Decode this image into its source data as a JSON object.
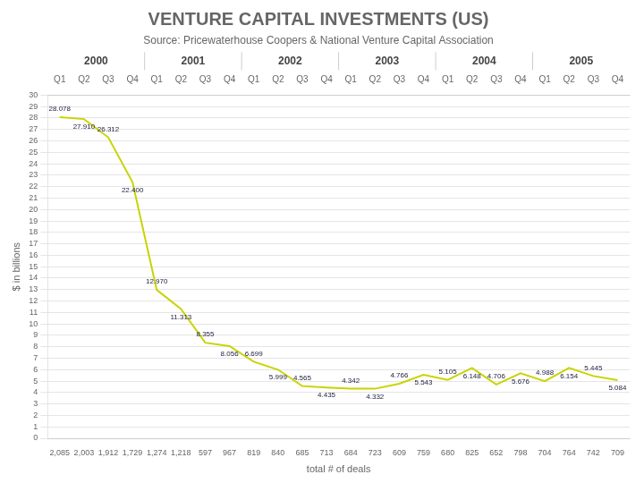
{
  "chart_data": {
    "type": "line",
    "title": "VENTURE CAPITAL INVESTMENTS (US)",
    "subtitle": "Source: Pricewaterhouse Coopers & National Venture Capital Association",
    "categories": [
      "Q1",
      "Q2",
      "Q3",
      "Q4",
      "Q1",
      "Q2",
      "Q3",
      "Q4",
      "Q1",
      "Q2",
      "Q3",
      "Q4",
      "Q1",
      "Q2",
      "Q3",
      "Q4",
      "Q1",
      "Q2",
      "Q3",
      "Q4",
      "Q1",
      "Q2",
      "Q3",
      "Q4"
    ],
    "years": [
      "2000",
      "2001",
      "2002",
      "2003",
      "2004",
      "2005"
    ],
    "deal_counts": [
      "2,085",
      "2,003",
      "1,912",
      "1,729",
      "1,274",
      "1,218",
      "597",
      "967",
      "819",
      "840",
      "685",
      "713",
      "684",
      "723",
      "609",
      "759",
      "680",
      "825",
      "652",
      "798",
      "704",
      "764",
      "742",
      "709"
    ],
    "values": [
      28.078,
      27.91,
      26.312,
      22.4,
      12.97,
      11.313,
      8.355,
      8.056,
      6.699,
      5.999,
      4.565,
      4.435,
      4.342,
      4.332,
      4.766,
      5.543,
      5.105,
      6.148,
      4.706,
      5.676,
      4.988,
      6.154,
      5.445,
      5.084
    ],
    "value_labels": [
      "28.078",
      "27.910",
      "26.312",
      "22.400",
      "12.970",
      "11.313",
      "8.355",
      "8.056",
      "6.699",
      "5.999",
      "4.565",
      "4.435",
      "4.342",
      "4.332",
      "4.766",
      "5.543",
      "5.105",
      "6.148",
      "4.706",
      "5.676",
      "4.988",
      "6.154",
      "5.445",
      "5.084"
    ],
    "data_labels": true,
    "color": "#c8d400",
    "ylim": [
      0,
      30
    ],
    "yticks": [
      0,
      1,
      2,
      3,
      4,
      5,
      6,
      7,
      8,
      9,
      10,
      11,
      12,
      13,
      14,
      15,
      16,
      17,
      18,
      19,
      20,
      21,
      22,
      23,
      24,
      25,
      26,
      27,
      28,
      29,
      30
    ],
    "grid": true,
    "ylabel": "$ in billions",
    "xlabel": "total # of deals"
  }
}
